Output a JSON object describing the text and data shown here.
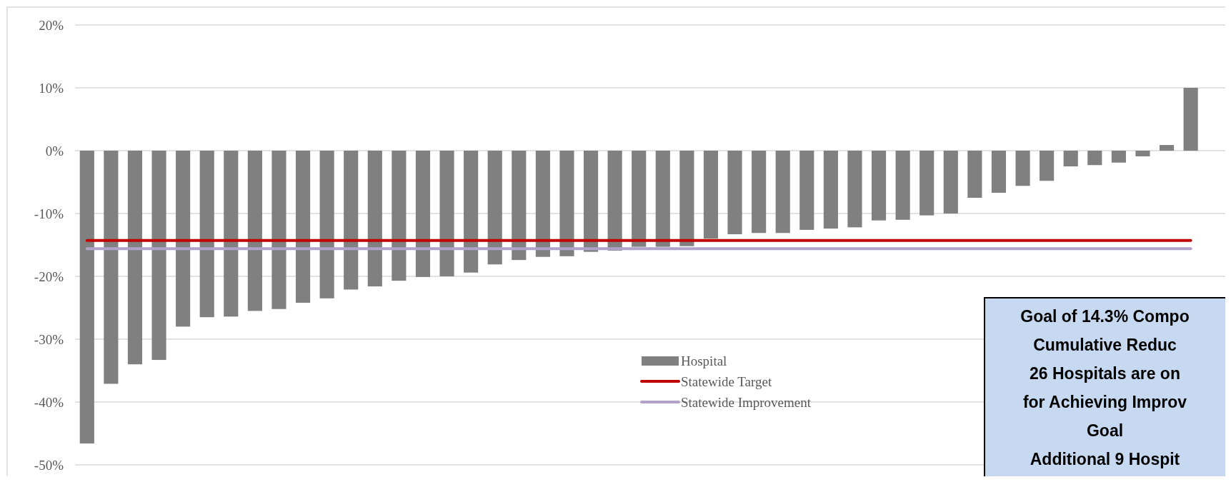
{
  "chart_data": {
    "type": "bar",
    "categories": [
      null,
      null,
      null,
      null,
      null,
      null,
      null,
      null,
      null,
      null,
      null,
      null,
      null,
      null,
      null,
      null,
      null,
      null,
      null,
      null,
      null,
      null,
      null,
      null,
      null,
      null,
      null,
      null,
      null,
      null,
      null,
      null,
      null,
      null,
      null,
      null,
      null,
      null,
      null,
      null,
      null,
      null,
      null,
      null,
      null,
      null,
      null
    ],
    "series": [
      {
        "name": "Hospital",
        "color": "#808080",
        "values": [
          -46.6,
          -37.1,
          -34.0,
          -33.3,
          -28.0,
          -26.5,
          -26.4,
          -25.5,
          -25.2,
          -24.2,
          -23.5,
          -22.1,
          -21.6,
          -20.7,
          -20.1,
          -20.0,
          -19.4,
          -18.1,
          -17.4,
          -16.9,
          -16.8,
          -16.1,
          -15.9,
          -15.3,
          -15.3,
          -15.2,
          -14.0,
          -13.3,
          -13.1,
          -13.1,
          -12.6,
          -12.4,
          -12.2,
          -11.1,
          -11.0,
          -10.3,
          -10.0,
          -7.5,
          -6.7,
          -5.6,
          -4.8,
          -2.5,
          -2.3,
          -1.9,
          -0.9,
          0.9,
          10.0
        ]
      },
      {
        "name": "Statewide Target",
        "type": "line",
        "color": "#c00000",
        "values": [
          -14.3,
          -14.3,
          -14.3,
          -14.3,
          -14.3,
          -14.3,
          -14.3,
          -14.3,
          -14.3,
          -14.3,
          -14.3,
          -14.3,
          -14.3,
          -14.3,
          -14.3,
          -14.3,
          -14.3,
          -14.3,
          -14.3,
          -14.3,
          -14.3,
          -14.3,
          -14.3,
          -14.3,
          -14.3,
          -14.3,
          -14.3,
          -14.3,
          -14.3,
          -14.3,
          -14.3,
          -14.3,
          -14.3,
          -14.3,
          -14.3,
          -14.3,
          -14.3,
          -14.3,
          -14.3,
          -14.3,
          -14.3,
          -14.3,
          -14.3,
          -14.3,
          -14.3,
          -14.3,
          -14.3
        ]
      },
      {
        "name": "Statewide Improvement",
        "type": "line",
        "color": "#b3a2c7",
        "values": [
          -15.6,
          -15.6,
          -15.6,
          -15.6,
          -15.6,
          -15.6,
          -15.6,
          -15.6,
          -15.6,
          -15.6,
          -15.6,
          -15.6,
          -15.6,
          -15.6,
          -15.6,
          -15.6,
          -15.6,
          -15.6,
          -15.6,
          -15.6,
          -15.6,
          -15.6,
          -15.6,
          -15.6,
          -15.6,
          -15.6,
          -15.6,
          -15.6,
          -15.6,
          -15.6,
          -15.6,
          -15.6,
          -15.6,
          -15.6,
          -15.6,
          -15.6,
          -15.6,
          -15.6,
          -15.6,
          -15.6,
          -15.6,
          -15.6,
          -15.6,
          -15.6,
          -15.6,
          -15.6,
          -15.6
        ]
      }
    ],
    "ylim": [
      -50,
      20
    ],
    "yticks": [
      {
        "value": 20,
        "label": "20%"
      },
      {
        "value": 10,
        "label": "10%"
      },
      {
        "value": 0,
        "label": "0%"
      },
      {
        "value": -10,
        "label": "-10%"
      },
      {
        "value": -20,
        "label": "-20%"
      },
      {
        "value": -30,
        "label": "-30%"
      },
      {
        "value": -40,
        "label": "-40%"
      },
      {
        "value": -50,
        "label": "-50%"
      }
    ],
    "grid": "y",
    "legend": "bottom",
    "line_style": "solid",
    "marker": "none",
    "annotations": [
      "Goal of 14.3% Compo\nCumulative Reduc\n26 Hospitals are on\nfor Achieving Improv\nGoal\nAdditional 9 Hospit"
    ]
  }
}
